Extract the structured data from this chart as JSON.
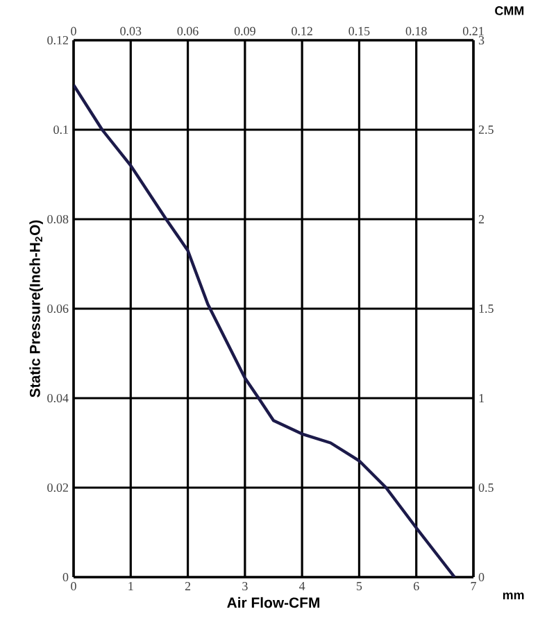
{
  "chart_data": {
    "type": "line",
    "xlabel": "Air Flow-CFM",
    "ylabel": "Static Pressure(Inch-H$_{2}$O)",
    "x2label": "CMM",
    "y2label": "mm",
    "series": [
      {
        "color": "#1c1a4a",
        "x": [
          0,
          0.5,
          1,
          1.62,
          2,
          2.35,
          3,
          3.24,
          3.5,
          4,
          4.5,
          5,
          5.47,
          6,
          6.67
        ],
        "values": [
          0.11,
          0.1,
          0.092,
          0.08,
          0.073,
          0.061,
          0.0445,
          0.04,
          0.035,
          0.032,
          0.03,
          0.026,
          0.02,
          0.011,
          0
        ]
      }
    ],
    "xlim": [
      0,
      7
    ],
    "xticks": [
      0,
      1,
      2,
      3,
      4,
      5,
      6,
      7
    ],
    "ylim": [
      0,
      0.12
    ],
    "yticks": [
      0,
      0.02,
      0.04,
      0.06,
      0.08,
      0.1,
      0.12
    ],
    "x2lim": [
      0,
      0.21
    ],
    "x2ticks": [
      0,
      0.03,
      0.06,
      0.09,
      0.12,
      0.15,
      0.18,
      0.21
    ],
    "y2lim": [
      0,
      3
    ],
    "y2ticks": [
      0,
      0.5,
      1,
      1.5,
      2,
      2.5,
      3
    ],
    "grid": true,
    "marker": "none",
    "line_style": "solid"
  }
}
